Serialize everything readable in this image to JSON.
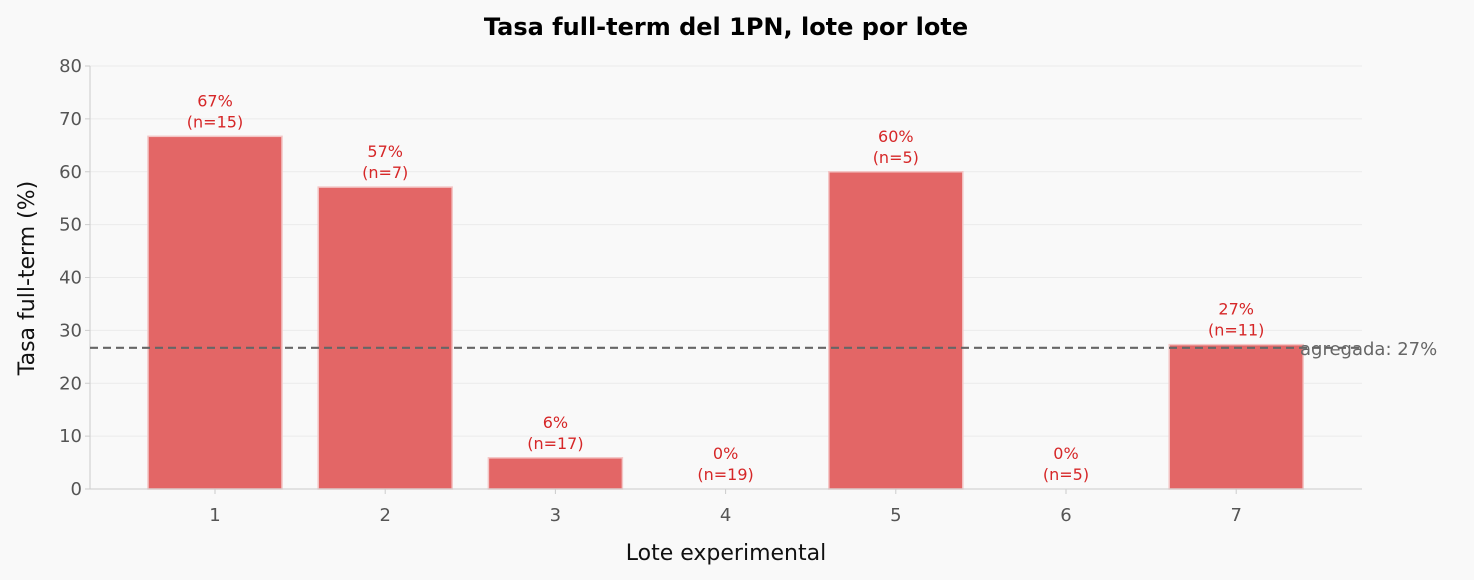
{
  "chart_data": {
    "type": "bar",
    "title": "Tasa full-term del 1PN, lote por lote",
    "xlabel": "Lote experimental",
    "ylabel": "Tasa full-term (%)",
    "categories": [
      "1",
      "2",
      "3",
      "4",
      "5",
      "6",
      "7"
    ],
    "values": [
      66.7,
      57.1,
      5.9,
      0,
      60,
      0,
      27.3
    ],
    "value_labels": [
      "67%",
      "57%",
      "6%",
      "0%",
      "60%",
      "0%",
      "27%"
    ],
    "n_labels": [
      "(n=15)",
      "(n=7)",
      "(n=17)",
      "(n=19)",
      "(n=5)",
      "(n=5)",
      "(n=11)"
    ],
    "ylim": [
      0,
      80
    ],
    "yticks": [
      0,
      10,
      20,
      30,
      40,
      50,
      60,
      70,
      80
    ],
    "grid": true,
    "reference_line": {
      "value": 26.7,
      "label": "agregada: 27%",
      "style": "dashed"
    },
    "colors": {
      "bar": "#e36666",
      "bar_edge": "#f3c6c6",
      "data_label": "#d62728",
      "reference_line": "#666666",
      "grid": "#ebebeb",
      "axis": "#cccccc",
      "background": "#f9f9f9"
    }
  }
}
